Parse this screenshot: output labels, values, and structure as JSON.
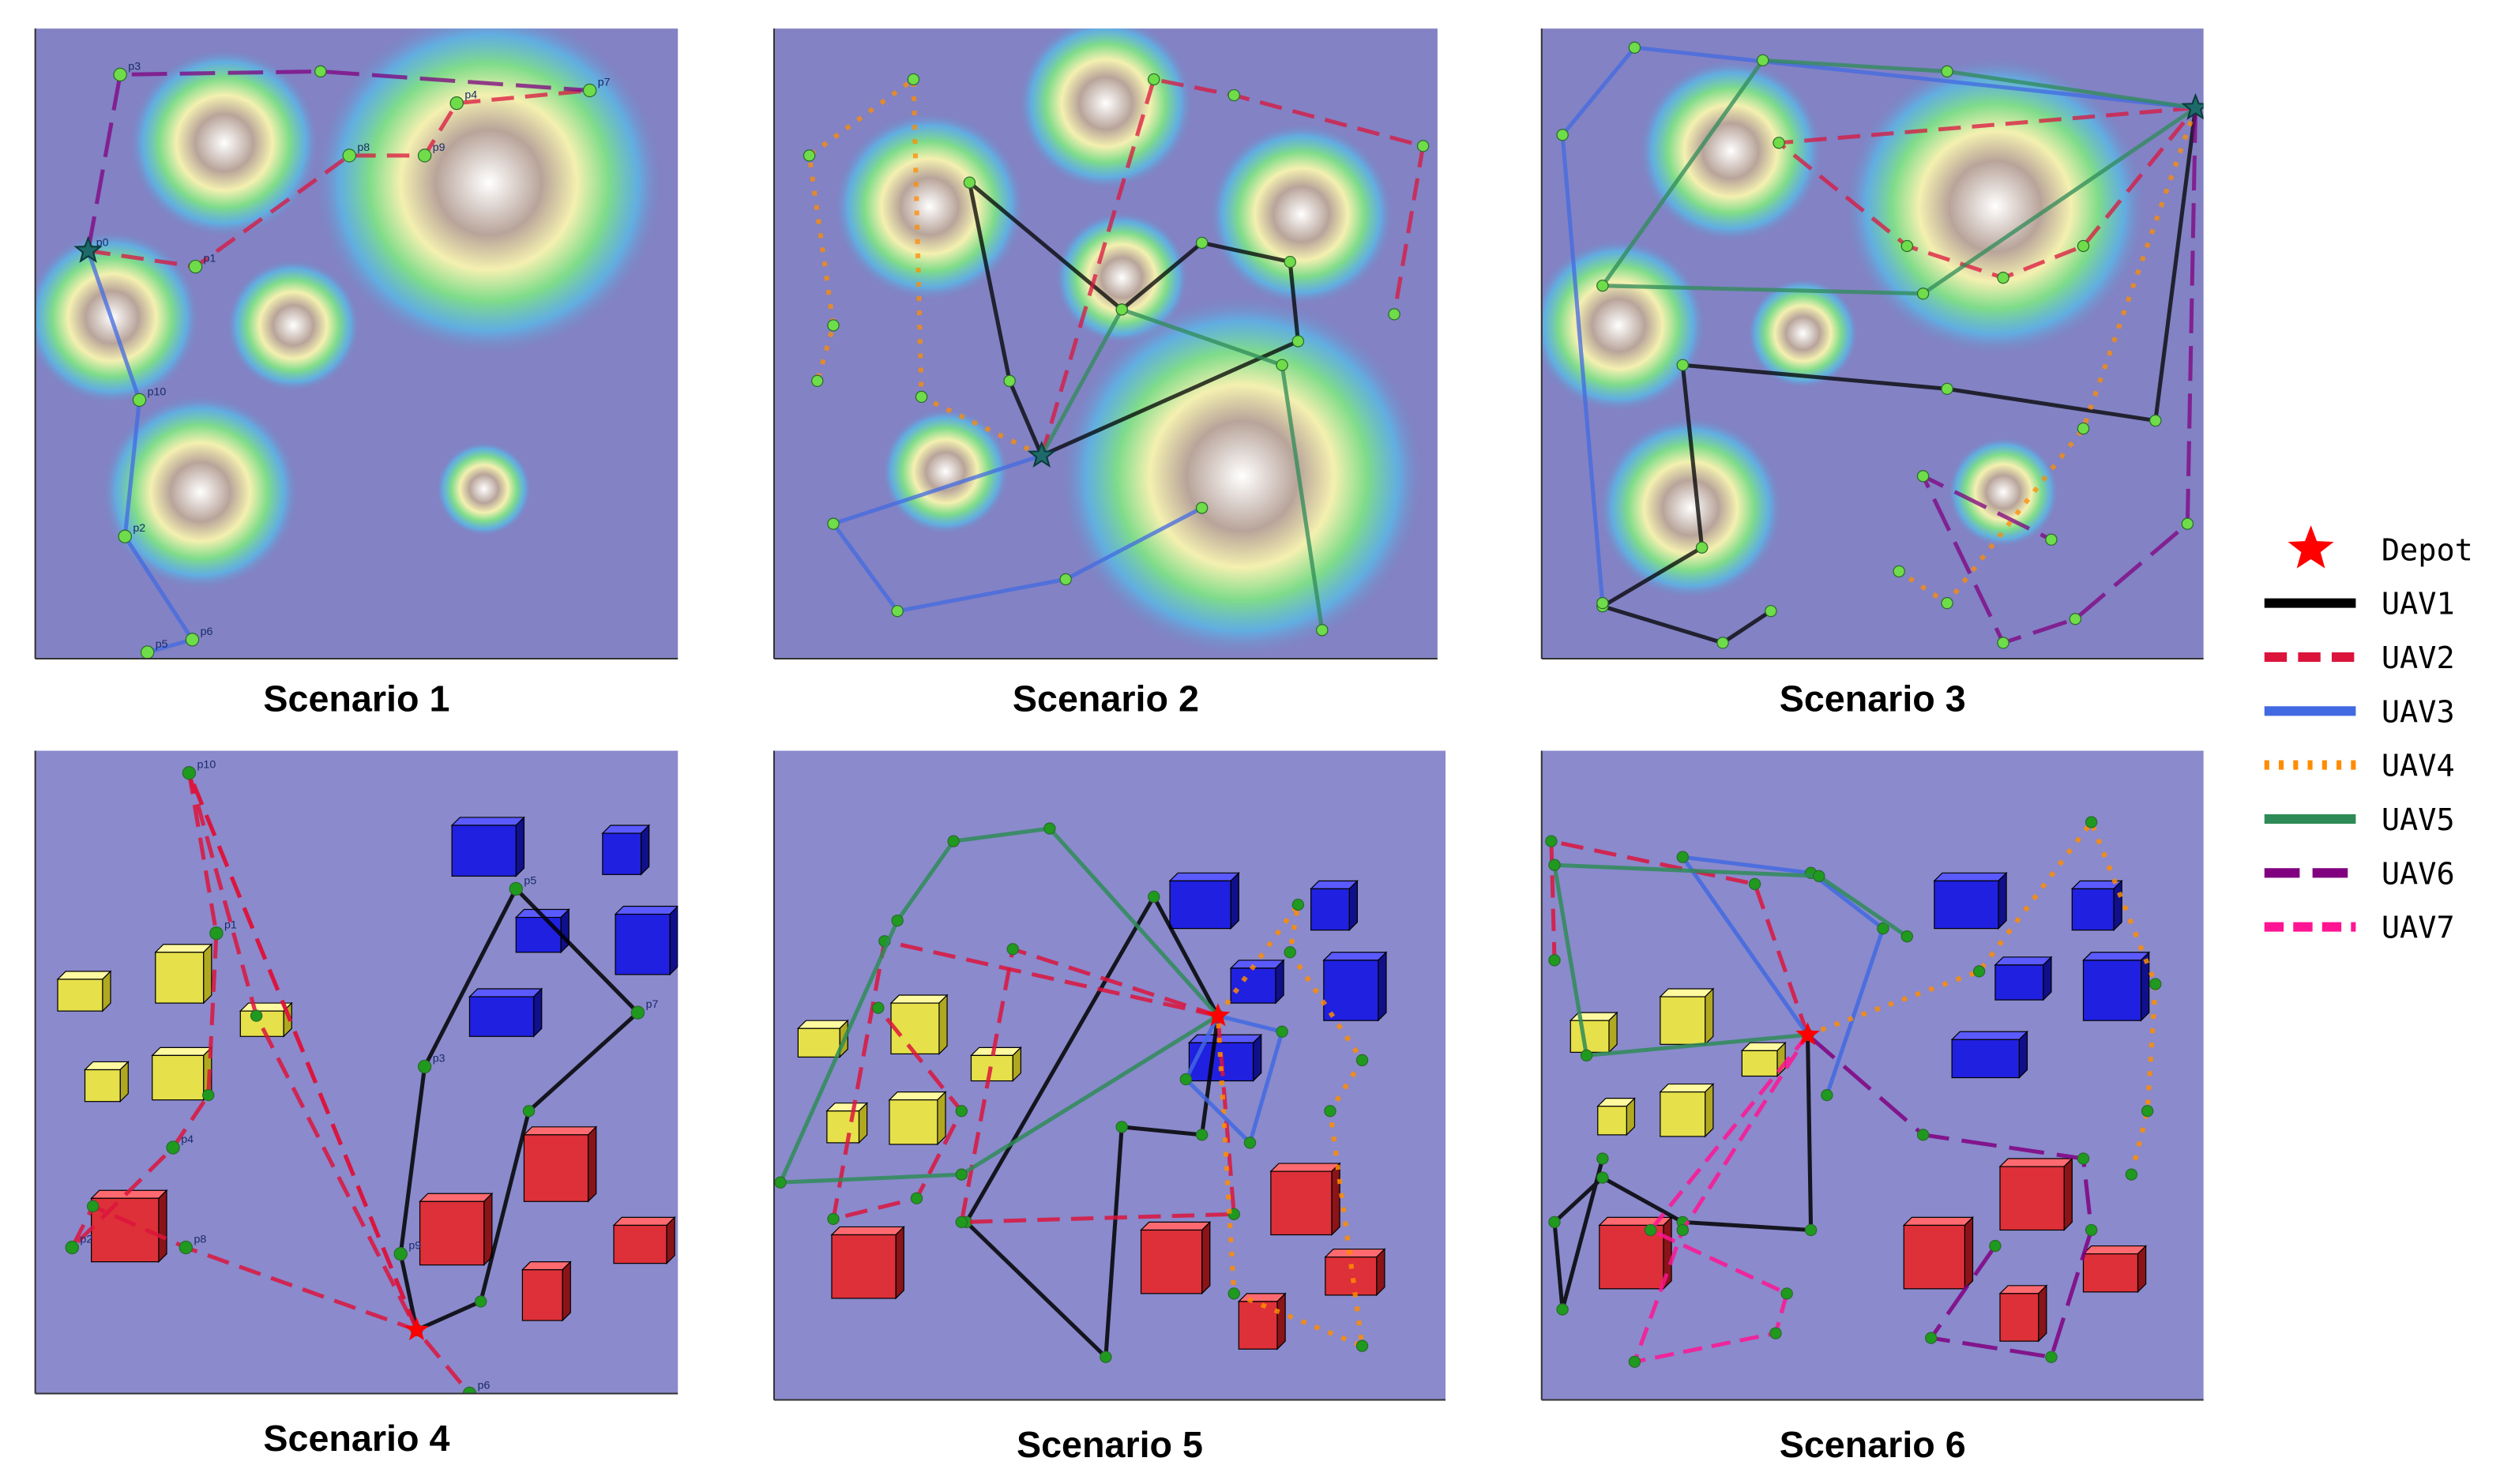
{
  "scenarios": [
    {
      "title": "Scenario 1",
      "nodes": [
        "p3",
        "p7",
        "p4",
        "p8",
        "p9",
        "p0",
        "p1",
        "p10",
        "p2",
        "p6",
        "p5"
      ]
    },
    {
      "title": "Scenario 2"
    },
    {
      "title": "Scenario 3"
    },
    {
      "title": "Scenario 4",
      "nodes": [
        "p10",
        "p1",
        "p4",
        "p2",
        "p8",
        "p5",
        "p7",
        "p3",
        "p9",
        "p6"
      ]
    },
    {
      "title": "Scenario 5"
    },
    {
      "title": "Scenario 6"
    }
  ],
  "legend": {
    "items": [
      {
        "label": "Depot",
        "color": "#ff0000"
      },
      {
        "label": "UAV1",
        "color": "#000000"
      },
      {
        "label": "UAV2",
        "color": "#dc143c"
      },
      {
        "label": "UAV3",
        "color": "#4169e1"
      },
      {
        "label": "UAV4",
        "color": "#ff8c00"
      },
      {
        "label": "UAV5",
        "color": "#2e8b57"
      },
      {
        "label": "UAV6",
        "color": "#800080"
      },
      {
        "label": "UAV7",
        "color": "#ff1493"
      }
    ]
  }
}
